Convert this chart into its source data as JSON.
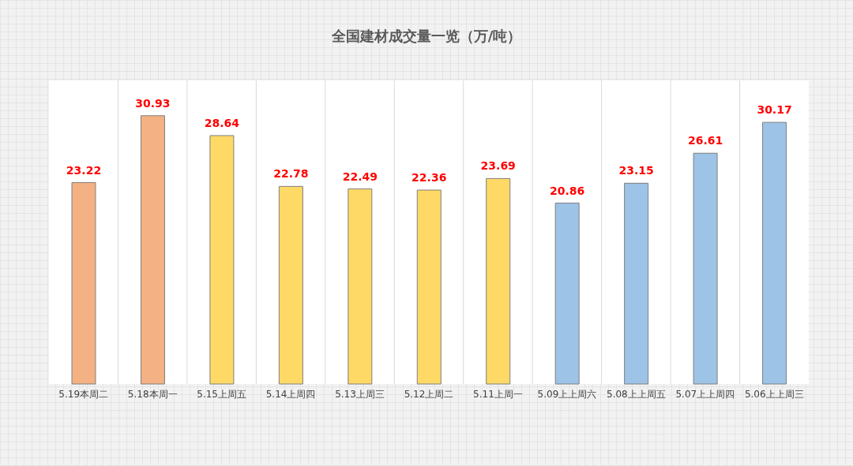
{
  "chart_data": {
    "type": "bar",
    "title": "全国建材成交量一览（万/吨）",
    "categories": [
      "5.19本周二",
      "5.18本周一",
      "5.15上周五",
      "5.14上周四",
      "5.13上周三",
      "5.12上周二",
      "5.11上周一",
      "5.09上上周六",
      "5.08上上周五",
      "5.07上上周四",
      "5.06上上周三"
    ],
    "values": [
      23.22,
      30.93,
      28.64,
      22.78,
      22.49,
      22.36,
      23.69,
      20.86,
      23.15,
      26.61,
      30.17
    ],
    "colors": [
      "#f4b183",
      "#f4b183",
      "#ffd966",
      "#ffd966",
      "#ffd966",
      "#ffd966",
      "#ffd966",
      "#9dc3e6",
      "#9dc3e6",
      "#9dc3e6",
      "#9dc3e6"
    ],
    "data_labels": true,
    "grid": "x"
  }
}
